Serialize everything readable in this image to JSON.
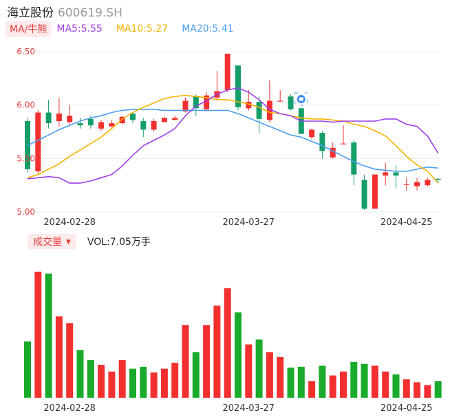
{
  "header": {
    "name": "海立股份",
    "code": "600619.SH"
  },
  "ma_legend": {
    "button_label": "MA/牛熊",
    "ma5": "MA5:5.55",
    "ma10": "MA10:5.27",
    "ma20": "MA20:5.41"
  },
  "volume_legend": {
    "button_label": "成交量",
    "value": "VOL:7.05万手"
  },
  "colors": {
    "up": "#f23030",
    "down": "#159e6a",
    "vol_down": "#1aab2c",
    "ma5": "#9b3ee8",
    "ma10": "#f5b400",
    "ma20": "#4a9ef0",
    "grid": "#ececec"
  },
  "chart_data": [
    {
      "type": "candlestick",
      "ylim": [
        5.0,
        6.5
      ],
      "yticks": [
        "6.50",
        "6.00",
        "5.50",
        "5.00"
      ],
      "xticks": [
        "2024-02-28",
        "2024-03-27",
        "2024-04-25"
      ],
      "grid": true,
      "candles": [
        {
          "o": 5.85,
          "c": 5.4,
          "h": 5.88,
          "l": 5.37
        },
        {
          "o": 5.38,
          "c": 5.93,
          "h": 5.95,
          "l": 5.36
        },
        {
          "o": 5.93,
          "c": 5.83,
          "h": 6.05,
          "l": 5.78
        },
        {
          "o": 5.85,
          "c": 5.92,
          "h": 6.07,
          "l": 5.8
        },
        {
          "o": 5.84,
          "c": 5.9,
          "h": 6.0,
          "l": 5.8
        },
        {
          "o": 5.83,
          "c": 5.81,
          "h": 5.88,
          "l": 5.78
        },
        {
          "o": 5.87,
          "c": 5.81,
          "h": 5.9,
          "l": 5.78
        },
        {
          "o": 5.78,
          "c": 5.84,
          "h": 5.86,
          "l": 5.76
        },
        {
          "o": 5.8,
          "c": 5.83,
          "h": 5.86,
          "l": 5.79
        },
        {
          "o": 5.83,
          "c": 5.89,
          "h": 5.9,
          "l": 5.82
        },
        {
          "o": 5.92,
          "c": 5.86,
          "h": 5.93,
          "l": 5.83
        },
        {
          "o": 5.85,
          "c": 5.77,
          "h": 5.88,
          "l": 5.7
        },
        {
          "o": 5.77,
          "c": 5.85,
          "h": 5.87,
          "l": 5.75
        },
        {
          "o": 5.84,
          "c": 5.88,
          "h": 5.89,
          "l": 5.84
        },
        {
          "o": 5.86,
          "c": 5.88,
          "h": 5.9,
          "l": 5.86
        },
        {
          "o": 5.94,
          "c": 6.04,
          "h": 6.07,
          "l": 5.93
        },
        {
          "o": 6.08,
          "c": 5.97,
          "h": 6.1,
          "l": 5.9
        },
        {
          "o": 5.96,
          "c": 6.09,
          "h": 6.12,
          "l": 5.94
        },
        {
          "o": 6.07,
          "c": 6.13,
          "h": 6.32,
          "l": 6.04
        },
        {
          "o": 6.14,
          "c": 6.48,
          "h": 6.48,
          "l": 6.12
        },
        {
          "o": 6.37,
          "c": 5.98,
          "h": 6.37,
          "l": 5.95
        },
        {
          "o": 5.97,
          "c": 6.03,
          "h": 6.14,
          "l": 5.95
        },
        {
          "o": 6.03,
          "c": 5.87,
          "h": 6.08,
          "l": 5.74
        },
        {
          "o": 5.86,
          "c": 6.04,
          "h": 6.23,
          "l": 5.84
        },
        {
          "o": 6.04,
          "c": 6.04,
          "h": 6.14,
          "l": 6.04
        },
        {
          "o": 6.08,
          "c": 5.96,
          "h": 6.1,
          "l": 5.95
        },
        {
          "o": 5.97,
          "c": 5.73,
          "h": 5.98,
          "l": 5.73
        },
        {
          "o": 5.7,
          "c": 5.77,
          "h": 5.78,
          "l": 5.68
        },
        {
          "o": 5.74,
          "c": 5.57,
          "h": 5.76,
          "l": 5.5
        },
        {
          "o": 5.51,
          "c": 5.6,
          "h": 5.65,
          "l": 5.5
        },
        {
          "o": 5.64,
          "c": 5.64,
          "h": 5.81,
          "l": 5.64
        },
        {
          "o": 5.65,
          "c": 5.35,
          "h": 5.67,
          "l": 5.25
        },
        {
          "o": 5.3,
          "c": 5.03,
          "h": 5.35,
          "l": 5.02
        },
        {
          "o": 5.03,
          "c": 5.35,
          "h": 5.35,
          "l": 5.03
        },
        {
          "o": 5.34,
          "c": 5.37,
          "h": 5.46,
          "l": 5.25
        },
        {
          "o": 5.37,
          "c": 5.34,
          "h": 5.44,
          "l": 5.22
        },
        {
          "o": 5.26,
          "c": 5.26,
          "h": 5.32,
          "l": 5.2
        },
        {
          "o": 5.24,
          "c": 5.28,
          "h": 5.32,
          "l": 5.2
        },
        {
          "o": 5.25,
          "c": 5.3,
          "h": 5.32,
          "l": 5.24
        },
        {
          "o": 5.31,
          "c": 5.3,
          "h": 5.32,
          "l": 5.28
        }
      ],
      "ma5": [
        5.31,
        5.32,
        5.33,
        5.32,
        5.27,
        5.27,
        5.29,
        5.32,
        5.35,
        5.43,
        5.53,
        5.62,
        5.67,
        5.72,
        5.78,
        5.9,
        5.99,
        6.04,
        6.1,
        6.14,
        6.16,
        6.12,
        6.05,
        5.96,
        5.92,
        5.9,
        5.85,
        5.85,
        5.85,
        5.84,
        5.85,
        5.85,
        5.85,
        5.85,
        5.87,
        5.87,
        5.82,
        5.8,
        5.71,
        5.55
      ],
      "ma10": [
        5.32,
        5.35,
        5.4,
        5.45,
        5.52,
        5.58,
        5.64,
        5.7,
        5.78,
        5.87,
        5.93,
        5.98,
        6.02,
        6.06,
        6.08,
        6.09,
        6.08,
        6.07,
        6.05,
        6.05,
        6.03,
        6.01,
        5.98,
        5.93,
        5.92,
        5.9,
        5.88,
        5.87,
        5.87,
        5.86,
        5.85,
        5.82,
        5.8,
        5.76,
        5.71,
        5.62,
        5.52,
        5.44,
        5.38,
        5.27
      ],
      "ma20": [
        5.62,
        5.67,
        5.72,
        5.77,
        5.81,
        5.85,
        5.88,
        5.9,
        5.93,
        5.95,
        5.96,
        5.96,
        5.96,
        5.95,
        5.95,
        5.95,
        5.95,
        5.95,
        5.95,
        5.95,
        5.92,
        5.88,
        5.84,
        5.8,
        5.76,
        5.72,
        5.7,
        5.66,
        5.62,
        5.57,
        5.52,
        5.47,
        5.43,
        5.4,
        5.39,
        5.38,
        5.38,
        5.4,
        5.42,
        5.41
      ]
    },
    {
      "type": "bar",
      "series": [
        {
          "values": [
            0.58,
            1.3,
            1.28,
            0.84,
            0.77,
            0.49,
            0.39,
            0.34,
            0.27,
            0.39,
            0.3,
            0.32,
            0.26,
            0.3,
            0.36,
            0.75,
            0.47,
            0.75,
            0.95,
            1.13,
            0.88,
            0.55,
            0.6,
            0.47,
            0.42,
            0.31,
            0.32,
            0.17,
            0.33,
            0.23,
            0.27,
            0.37,
            0.35,
            0.33,
            0.27,
            0.24,
            0.19,
            0.16,
            0.13,
            0.17
          ]
        }
      ],
      "ylim": [
        0,
        1.32
      ],
      "xticks": [
        "2024-02-28",
        "2024-03-27",
        "2024-04-25"
      ]
    }
  ]
}
